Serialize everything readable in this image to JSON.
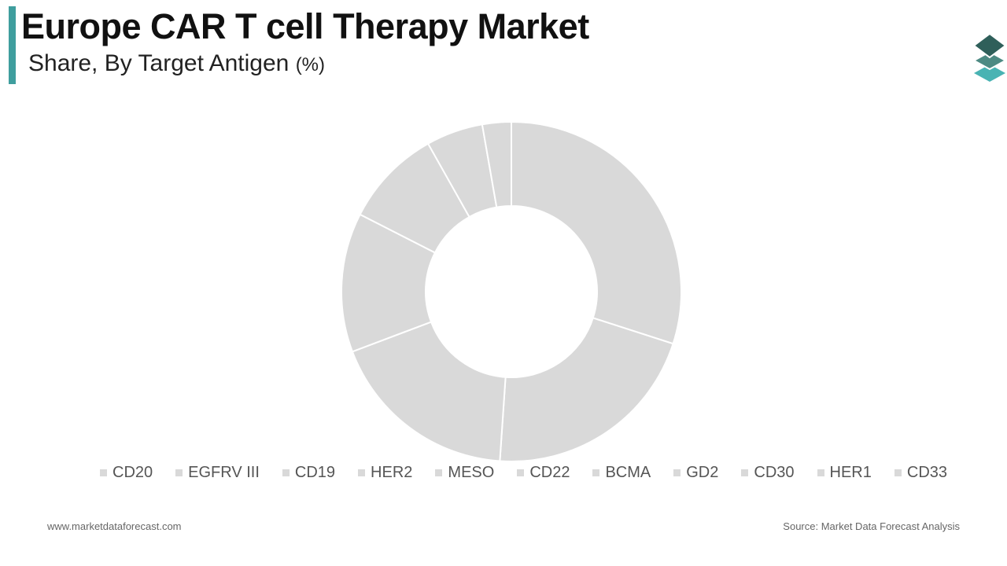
{
  "header": {
    "title": "Europe CAR T cell Therapy Market",
    "subtitle": "Share, By Target Antigen",
    "unit": "(%)"
  },
  "logo": {
    "icon": "stacked-layers-icon",
    "colors": [
      "#2f5f5a",
      "#4d8a83",
      "#49b3b3"
    ]
  },
  "chart_data": {
    "type": "pie",
    "donut": true,
    "title": "Europe CAR T cell Therapy Market",
    "subtitle": "Share, By Target Antigen (%)",
    "categories": [
      "CD20",
      "EGFRV III",
      "CD19",
      "HER2",
      "MESO",
      "CD22",
      "BCMA",
      "GD2",
      "CD30",
      "HER1",
      "CD33"
    ],
    "values": [
      30.5,
      21.5,
      18.5,
      13.5,
      9.5,
      5.5,
      2.8,
      0,
      0,
      0,
      0
    ],
    "slice_color": "#d9d9d9",
    "legend_position": "bottom"
  },
  "footer": {
    "website": "www.marketdataforecast.com",
    "source": "Source: Market Data Forecast Analysis"
  }
}
